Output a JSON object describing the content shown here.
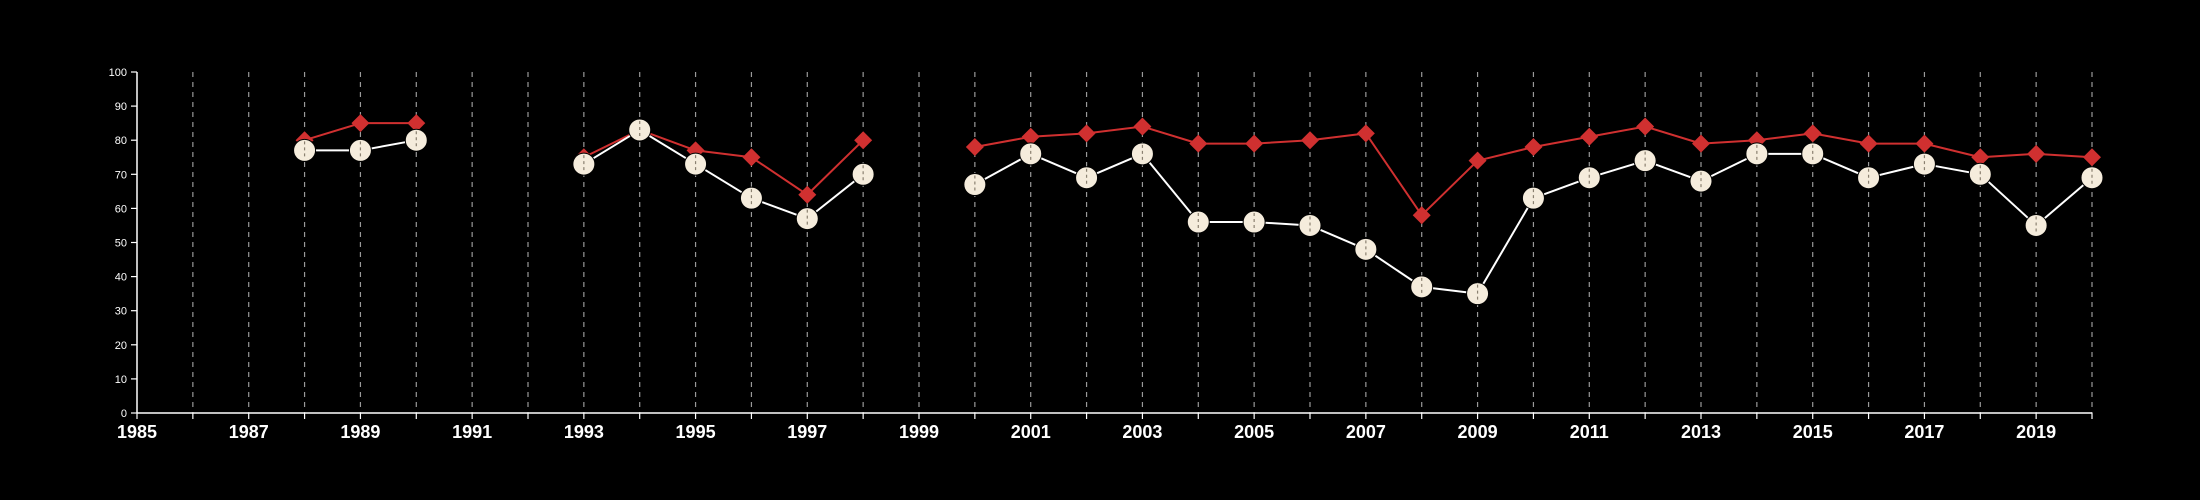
{
  "chart_data": {
    "type": "line",
    "title": "",
    "xlabel": "",
    "ylabel": "",
    "xlim": [
      1985,
      2020
    ],
    "ylim": [
      0,
      100
    ],
    "y_ticks": [
      0,
      10,
      20,
      30,
      40,
      50,
      60,
      70,
      80,
      90,
      100
    ],
    "x_ticks": [
      1985,
      1987,
      1989,
      1991,
      1993,
      1995,
      1997,
      1999,
      2001,
      2003,
      2005,
      2007,
      2009,
      2011,
      2013,
      2015,
      2017,
      2019
    ],
    "vertical_gridlines_years": [
      1986,
      1987,
      1988,
      1989,
      1990,
      1991,
      1992,
      1993,
      1994,
      1995,
      1996,
      1997,
      1998,
      1999,
      2000,
      2001,
      2002,
      2003,
      2004,
      2005,
      2006,
      2007,
      2008,
      2009,
      2010,
      2011,
      2012,
      2013,
      2014,
      2015,
      2016,
      2017,
      2018,
      2019,
      2020
    ],
    "grid": "vertical dashed",
    "legend": "none",
    "series": [
      {
        "marker": "diamond",
        "color": "#d03030",
        "segments": [
          [
            [
              1988,
              80
            ],
            [
              1989,
              85
            ],
            [
              1990,
              85
            ]
          ],
          [
            [
              1993,
              75
            ],
            [
              1994,
              83
            ],
            [
              1995,
              77
            ],
            [
              1996,
              75
            ],
            [
              1997,
              64
            ],
            [
              1998,
              80
            ]
          ],
          [
            [
              2000,
              78
            ],
            [
              2001,
              81
            ],
            [
              2002,
              82
            ],
            [
              2003,
              84
            ],
            [
              2004,
              79
            ],
            [
              2005,
              79
            ],
            [
              2006,
              80
            ],
            [
              2007,
              82
            ],
            [
              2008,
              58
            ],
            [
              2009,
              74
            ],
            [
              2010,
              78
            ],
            [
              2011,
              81
            ],
            [
              2012,
              84
            ],
            [
              2013,
              79
            ],
            [
              2014,
              80
            ],
            [
              2015,
              82
            ],
            [
              2016,
              79
            ],
            [
              2017,
              79
            ],
            [
              2018,
              75
            ],
            [
              2019,
              76
            ],
            [
              2020,
              75
            ]
          ]
        ]
      },
      {
        "marker": "circle",
        "color": "#ffffff",
        "marker_fill": "#f5ecdc",
        "segments": [
          [
            [
              1988,
              77
            ],
            [
              1989,
              77
            ],
            [
              1990,
              80
            ]
          ],
          [
            [
              1993,
              73
            ],
            [
              1994,
              83
            ],
            [
              1995,
              73
            ],
            [
              1996,
              63
            ],
            [
              1997,
              57
            ],
            [
              1998,
              70
            ]
          ],
          [
            [
              2000,
              67
            ],
            [
              2001,
              76
            ],
            [
              2002,
              69
            ],
            [
              2003,
              76
            ],
            [
              2004,
              56
            ],
            [
              2005,
              56
            ],
            [
              2006,
              55
            ],
            [
              2007,
              48
            ],
            [
              2008,
              37
            ],
            [
              2009,
              35
            ],
            [
              2010,
              63
            ],
            [
              2011,
              69
            ],
            [
              2012,
              74
            ],
            [
              2013,
              68
            ],
            [
              2014,
              76
            ],
            [
              2015,
              76
            ],
            [
              2016,
              69
            ],
            [
              2017,
              73
            ],
            [
              2018,
              70
            ],
            [
              2019,
              55
            ],
            [
              2020,
              69
            ]
          ]
        ]
      }
    ]
  }
}
